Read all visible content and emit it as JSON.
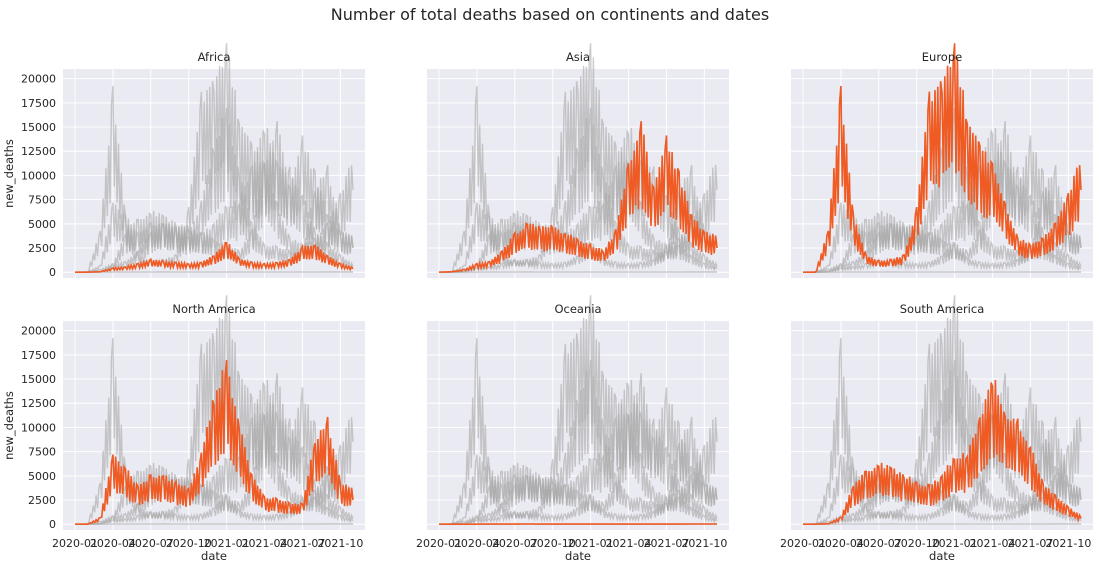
{
  "title": "Number of total deaths based on continents and dates",
  "chart_data": {
    "type": "line",
    "title": "Number of total deaths based on continents and dates",
    "xlabel": "date",
    "ylabel": "new_deaths",
    "ylim": [
      -600,
      21000
    ],
    "yticks": [
      "0",
      "2500",
      "5000",
      "7500",
      "10000",
      "12500",
      "15000",
      "17500",
      "20000"
    ],
    "xticks": [
      "2020-01",
      "2020-04",
      "2020-07",
      "2020-10",
      "2021-01",
      "2021-04",
      "2021-07",
      "2021-10"
    ],
    "grid": true,
    "background_series_color": "#a9a9a9",
    "highlight_color": "#f05a23",
    "note": "Small multiples: each panel highlights one continent in orange; all continents shown in grey. Values are approximate daily new_deaths read off the chart at ~monthly resolution.",
    "x": [
      "2020-01",
      "2020-02",
      "2020-03",
      "2020-04",
      "2020-05",
      "2020-06",
      "2020-07",
      "2020-08",
      "2020-09",
      "2020-10",
      "2020-11",
      "2020-12",
      "2021-01",
      "2021-02",
      "2021-03",
      "2021-04",
      "2021-05",
      "2021-06",
      "2021-07",
      "2021-08",
      "2021-09",
      "2021-10",
      "2021-11"
    ],
    "panels": [
      {
        "name": "Africa",
        "values": [
          0,
          0,
          50,
          300,
          400,
          600,
          900,
          800,
          700,
          600,
          700,
          1200,
          2200,
          1000,
          700,
          600,
          700,
          900,
          1800,
          2000,
          1200,
          600,
          350
        ]
      },
      {
        "name": "Asia",
        "values": [
          0,
          50,
          200,
          600,
          800,
          1500,
          2800,
          3500,
          3200,
          3300,
          2800,
          2300,
          2000,
          1500,
          3000,
          8000,
          10500,
          6000,
          9500,
          7000,
          4000,
          3000,
          2500
        ]
      },
      {
        "name": "Europe",
        "values": [
          0,
          0,
          3000,
          13000,
          4000,
          1200,
          800,
          900,
          1200,
          4500,
          12500,
          13500,
          16000,
          11000,
          9000,
          8000,
          5000,
          2500,
          2000,
          2500,
          3500,
          5500,
          8500
        ]
      },
      {
        "name": "North America",
        "values": [
          0,
          0,
          500,
          5000,
          4000,
          2800,
          3500,
          3500,
          3000,
          2500,
          5000,
          9000,
          11500,
          7000,
          3500,
          2000,
          1800,
          1500,
          1500,
          6000,
          7500,
          3000,
          2500
        ]
      },
      {
        "name": "Oceania",
        "values": [
          0,
          0,
          0,
          5,
          5,
          5,
          10,
          20,
          10,
          5,
          5,
          5,
          5,
          5,
          5,
          5,
          5,
          5,
          5,
          10,
          20,
          20,
          20
        ]
      },
      {
        "name": "South America",
        "values": [
          0,
          0,
          50,
          500,
          2800,
          3800,
          4300,
          4000,
          3500,
          3000,
          2800,
          3500,
          4800,
          5000,
          7500,
          10500,
          8000,
          7500,
          5500,
          3000,
          2000,
          1200,
          600
        ]
      }
    ]
  }
}
